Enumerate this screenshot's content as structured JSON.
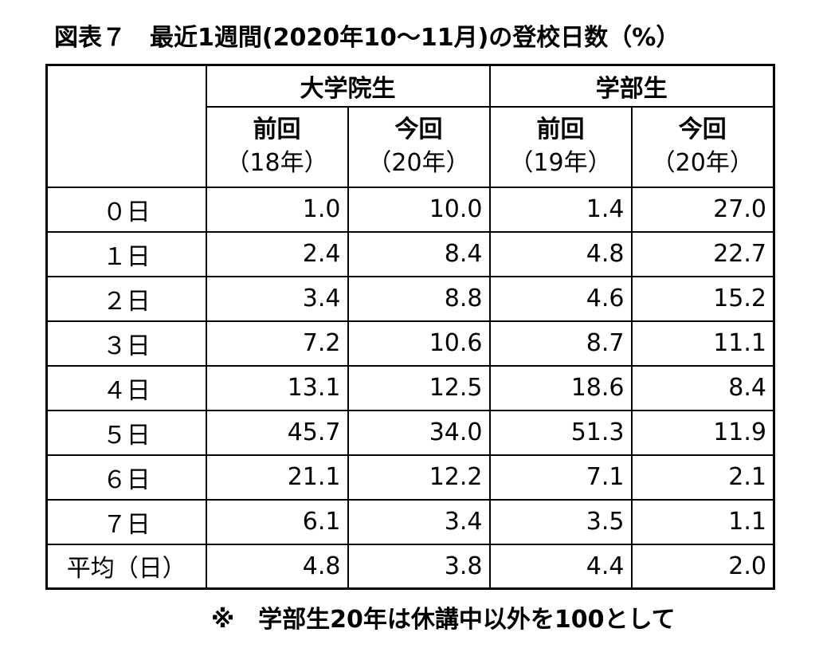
{
  "title": "図表７　最近1週間(2020年10～11月)の登校日数（%）",
  "table": {
    "groups": [
      "大学院生",
      "学部生"
    ],
    "columns": [
      {
        "label": "前回",
        "year": "（18年）"
      },
      {
        "label": "今回",
        "year": "（20年）"
      },
      {
        "label": "前回",
        "year": "（19年）"
      },
      {
        "label": "今回",
        "year": "（20年）"
      }
    ],
    "rows": [
      {
        "label": "０日",
        "values": [
          "1.0",
          "10.0",
          "1.4",
          "27.0"
        ]
      },
      {
        "label": "１日",
        "values": [
          "2.4",
          "8.4",
          "4.8",
          "22.7"
        ]
      },
      {
        "label": "２日",
        "values": [
          "3.4",
          "8.8",
          "4.6",
          "15.2"
        ]
      },
      {
        "label": "３日",
        "values": [
          "7.2",
          "10.6",
          "8.7",
          "11.1"
        ]
      },
      {
        "label": "４日",
        "values": [
          "13.1",
          "12.5",
          "18.6",
          "8.4"
        ]
      },
      {
        "label": "５日",
        "values": [
          "45.7",
          "34.0",
          "51.3",
          "11.9"
        ]
      },
      {
        "label": "６日",
        "values": [
          "21.1",
          "12.2",
          "7.1",
          "2.1"
        ]
      },
      {
        "label": "７日",
        "values": [
          "6.1",
          "3.4",
          "3.5",
          "1.1"
        ]
      },
      {
        "label": "平均（日）",
        "values": [
          "4.8",
          "3.8",
          "4.4",
          "2.0"
        ]
      }
    ]
  },
  "note": "※　学部生20年は休講中以外を100として"
}
